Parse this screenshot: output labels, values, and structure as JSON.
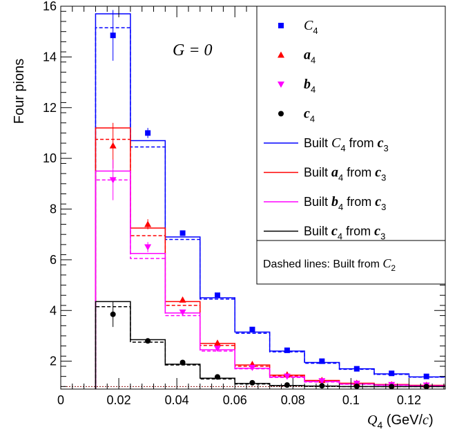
{
  "chart_data": {
    "type": "line",
    "ylabel": "Four pions",
    "xlabel": {
      "main": "Q",
      "sub": "4",
      "unit_pre": " (GeV/",
      "unit_c": "c",
      "unit_post": ")"
    },
    "annotation": "G = 0",
    "xlim": [
      0,
      0.1325
    ],
    "ylim": [
      0.9,
      16
    ],
    "x_ticks": [
      0,
      0.02,
      0.04,
      0.06,
      0.08,
      0.1,
      0.12
    ],
    "x_tick_labels": [
      "0",
      "0.02",
      "0.04",
      "0.06",
      "0.08",
      "0.1",
      "0.12"
    ],
    "y_ticks": [
      2,
      4,
      6,
      8,
      10,
      12,
      14,
      16
    ],
    "y_tick_labels": [
      "2",
      "4",
      "6",
      "8",
      "10",
      "12",
      "14",
      "16"
    ],
    "bin_edges": [
      0.012,
      0.024,
      0.036,
      0.048,
      0.06,
      0.072,
      0.084,
      0.096,
      0.108,
      0.12,
      0.1325
    ],
    "bin_centers": [
      0.018,
      0.03,
      0.042,
      0.054,
      0.066,
      0.078,
      0.09,
      0.102,
      0.114,
      0.126
    ],
    "points": [
      {
        "symbol": "C",
        "sub": "4",
        "style": "ital",
        "color": "#0000ff",
        "marker": "square",
        "values": [
          14.85,
          11.0,
          7.05,
          4.6,
          3.25,
          2.43,
          2.0,
          1.7,
          1.52,
          1.4
        ],
        "errors": [
          1.0,
          0.2,
          0.1,
          0.08,
          0.06,
          0.05,
          0.05,
          0.05,
          0.05,
          0.05
        ]
      },
      {
        "symbol": "a",
        "sub": "4",
        "style": "bi",
        "color": "#ff0000",
        "marker": "triangle-up",
        "values": [
          10.5,
          7.4,
          4.42,
          2.72,
          1.88,
          1.47,
          1.25,
          1.14,
          1.08,
          1.06
        ],
        "errors": [
          0.9,
          0.2,
          0.1,
          0.06,
          0.05,
          0.04,
          0.04,
          0.04,
          0.04,
          0.04
        ]
      },
      {
        "symbol": "b",
        "sub": "4",
        "style": "bi",
        "color": "#ff00ff",
        "marker": "triangle-down",
        "values": [
          9.15,
          6.5,
          3.93,
          2.5,
          1.75,
          1.4,
          1.22,
          1.12,
          1.07,
          1.05
        ],
        "errors": [
          0.8,
          0.2,
          0.1,
          0.06,
          0.05,
          0.04,
          0.04,
          0.04,
          0.04,
          0.04
        ]
      },
      {
        "symbol": "c",
        "sub": "4",
        "style": "bi",
        "color": "#000000",
        "marker": "circle",
        "values": [
          3.85,
          2.8,
          1.95,
          1.38,
          1.15,
          1.06,
          1.03,
          1.01,
          1.0,
          1.0
        ],
        "errors": [
          0.5,
          0.08,
          0.05,
          0.04,
          0.03,
          0.03,
          0.03,
          0.03,
          0.03,
          0.03
        ]
      }
    ],
    "histograms": [
      {
        "color": "#0000ff",
        "solid": [
          15.7,
          10.7,
          6.9,
          4.5,
          3.15,
          2.4,
          1.95,
          1.7,
          1.5,
          1.38
        ],
        "dashed": [
          15.15,
          10.45,
          6.8,
          4.45,
          3.1,
          2.37,
          1.92,
          1.68,
          1.48,
          1.37
        ]
      },
      {
        "color": "#ff0000",
        "solid": [
          11.2,
          7.25,
          4.35,
          2.7,
          1.85,
          1.45,
          1.24,
          1.13,
          1.08,
          1.05
        ],
        "dashed": [
          10.75,
          6.95,
          4.2,
          2.62,
          1.8,
          1.42,
          1.22,
          1.12,
          1.07,
          1.04
        ]
      },
      {
        "color": "#ff00ff",
        "solid": [
          9.5,
          6.25,
          3.9,
          2.45,
          1.72,
          1.38,
          1.2,
          1.1,
          1.06,
          1.03
        ],
        "dashed": [
          9.15,
          6.05,
          3.8,
          2.4,
          1.7,
          1.36,
          1.18,
          1.09,
          1.05,
          1.02
        ]
      },
      {
        "color": "#000000",
        "solid": [
          4.35,
          2.85,
          1.88,
          1.33,
          1.12,
          1.04,
          1.02,
          1.0,
          1.0,
          1.0
        ],
        "dashed": [
          4.15,
          2.75,
          1.85,
          1.3,
          1.1,
          1.03,
          1.01,
          1.0,
          1.0,
          1.0
        ]
      }
    ],
    "reference_line": {
      "y": 1.0,
      "color": "#800000"
    },
    "legend": {
      "position": "top-right",
      "entries": [
        {
          "kind": "marker",
          "marker": "square",
          "color": "#0000ff",
          "pre": "",
          "sym": "C",
          "sub": "4",
          "style": "ital",
          "mid": "",
          "sym2": "",
          "sub2": ""
        },
        {
          "kind": "marker",
          "marker": "triangle-up",
          "color": "#ff0000",
          "pre": "",
          "sym": "a",
          "sub": "4",
          "style": "bi",
          "mid": "",
          "sym2": "",
          "sub2": ""
        },
        {
          "kind": "marker",
          "marker": "triangle-down",
          "color": "#ff00ff",
          "pre": "",
          "sym": "b",
          "sub": "4",
          "style": "bi",
          "mid": "",
          "sym2": "",
          "sub2": ""
        },
        {
          "kind": "marker",
          "marker": "circle",
          "color": "#000000",
          "pre": "",
          "sym": "c",
          "sub": "4",
          "style": "bi",
          "mid": "",
          "sym2": "",
          "sub2": ""
        },
        {
          "kind": "line",
          "color": "#0000ff",
          "pre": "Built ",
          "sym": "C",
          "sub": "4",
          "style": "ital",
          "mid": " from ",
          "sym2": "c",
          "sub2": "3"
        },
        {
          "kind": "line",
          "color": "#ff0000",
          "pre": "Built ",
          "sym": "a",
          "sub": "4",
          "style": "bi",
          "mid": " from ",
          "sym2": "c",
          "sub2": "3"
        },
        {
          "kind": "line",
          "color": "#ff00ff",
          "pre": "Built ",
          "sym": "b",
          "sub": "4",
          "style": "bi",
          "mid": " from ",
          "sym2": "c",
          "sub2": "3"
        },
        {
          "kind": "line",
          "color": "#000000",
          "pre": "Built ",
          "sym": "c",
          "sub": "4",
          "style": "bi",
          "mid": " from ",
          "sym2": "c",
          "sub2": "3"
        }
      ],
      "note": {
        "text": "Dashed lines: Built from ",
        "sym": "C",
        "sub": "2"
      }
    }
  }
}
